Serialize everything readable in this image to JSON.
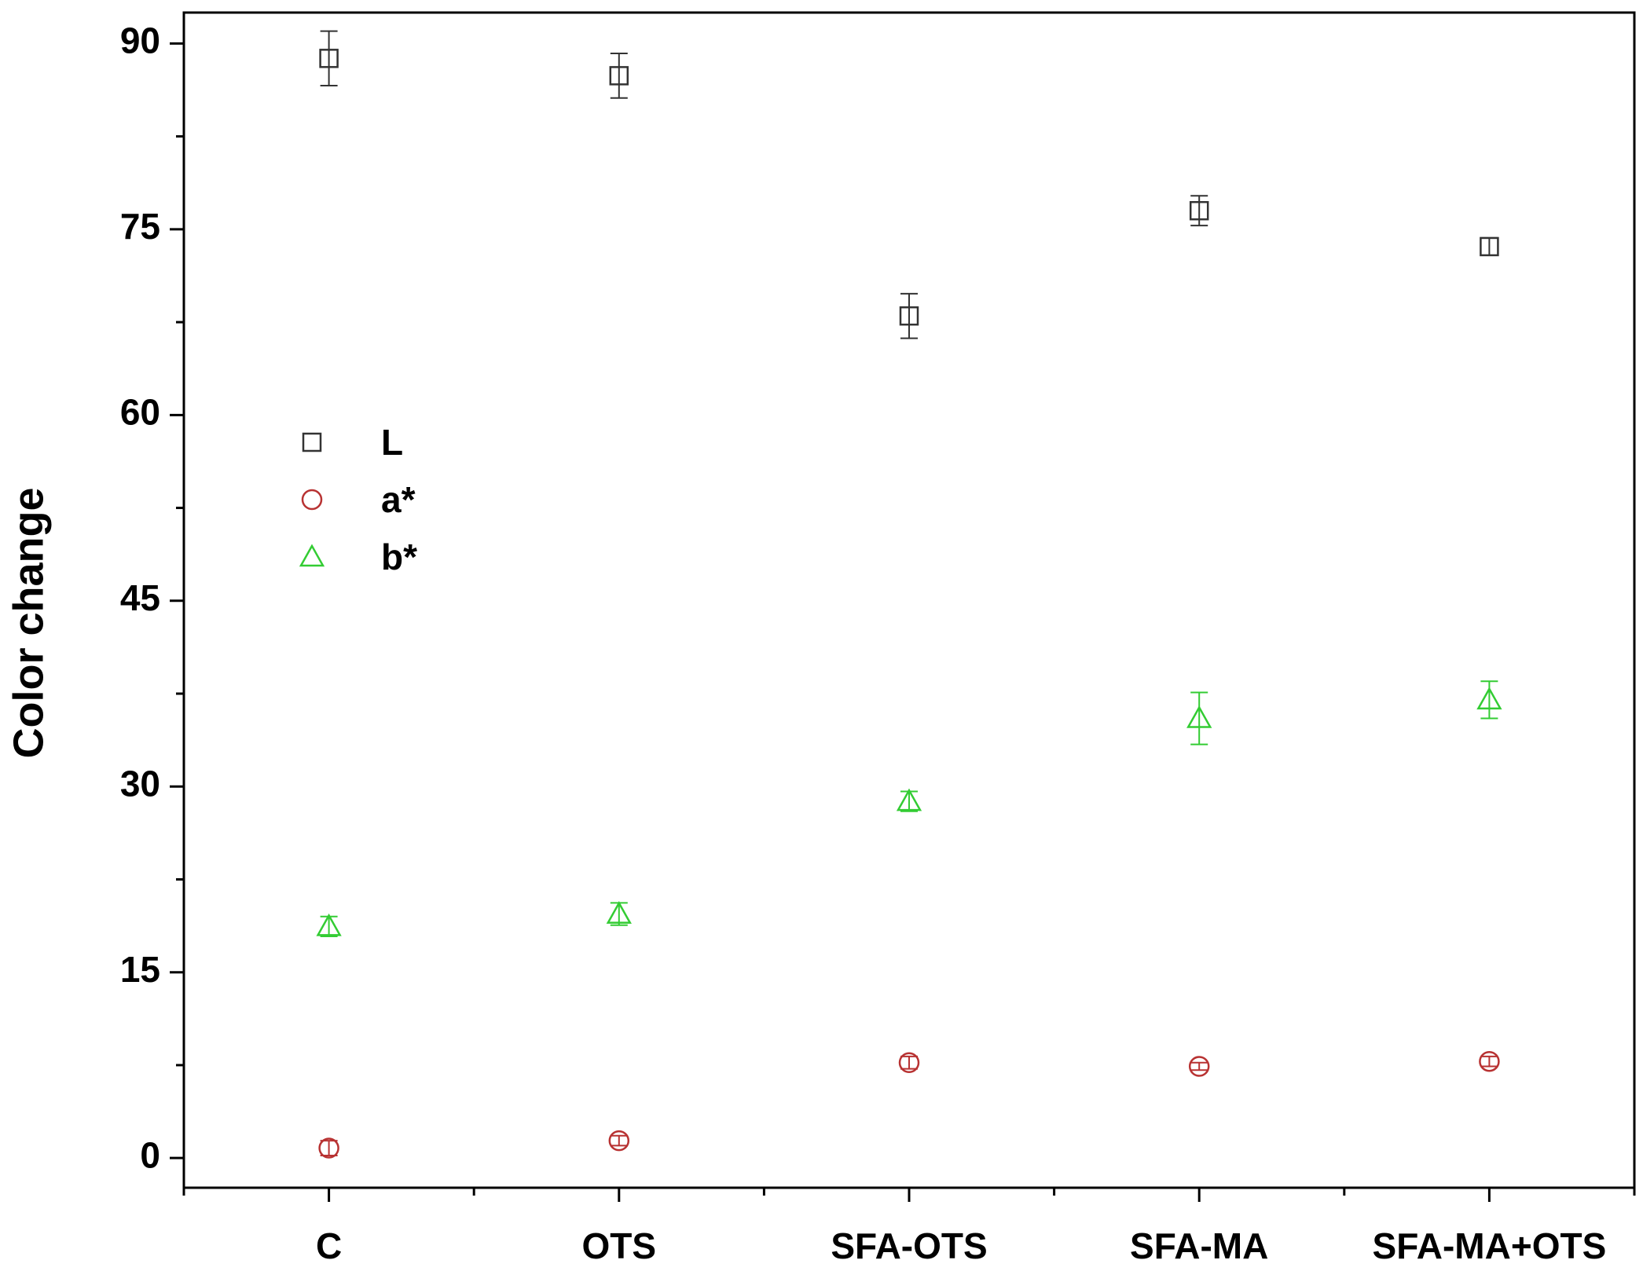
{
  "chart_data": {
    "type": "scatter",
    "y_label": "Color change",
    "categories": [
      "C",
      "OTS",
      "SFA-OTS",
      "SFA-MA",
      "SFA-MA+OTS"
    ],
    "series": [
      {
        "name": "L",
        "color": "#333333",
        "marker": "square",
        "values": [
          88.8,
          87.4,
          68.0,
          76.5,
          73.6
        ],
        "errors": [
          2.2,
          1.8,
          1.8,
          1.2,
          0.7
        ]
      },
      {
        "name": "a*",
        "color": "#b83232",
        "marker": "circle",
        "values": [
          0.8,
          1.4,
          7.7,
          7.4,
          7.8
        ],
        "errors": [
          0.6,
          0.4,
          0.5,
          0.3,
          0.4
        ]
      },
      {
        "name": "b*",
        "color": "#33cc33",
        "marker": "triangle",
        "values": [
          18.7,
          19.7,
          28.8,
          35.5,
          37.0
        ],
        "errors": [
          0.8,
          0.9,
          0.8,
          2.1,
          1.5
        ]
      }
    ],
    "ylim": [
      -2.4,
      92.5
    ],
    "yticks": [
      0,
      15,
      30,
      45,
      60,
      75,
      90
    ],
    "legend": "upper left"
  }
}
